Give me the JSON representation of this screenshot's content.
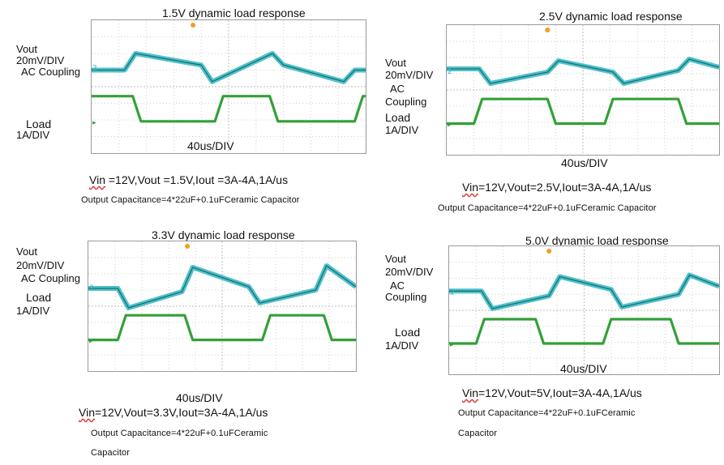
{
  "colors": {
    "vout": "#2fb7bf",
    "vout_dark": "#1b6e78",
    "load": "#33a038",
    "grid": "#d0d0d0",
    "marker_orange": "#f0a020"
  },
  "panels": [
    {
      "title": "1.5V dynamic load response",
      "vout_label": "Vout",
      "vout_scale": "20mV/DIV",
      "coupling": "AC Coupling",
      "load_label": "Load",
      "load_scale": "1A/DIV",
      "time_div": "40us/DIV",
      "condition_vin": "Vin",
      "condition_rest": " =12V,Vout =1.5V,Iout =3A-4A,1A/us",
      "capacitance": "Output Capacitance=4*22uF+0.1uFCeramic Capacitor"
    },
    {
      "title": "2.5V dynamic load response",
      "vout_label": "Vout",
      "vout_scale": "20mV/DIV",
      "coupling_line1": "AC",
      "coupling_line2": "Coupling",
      "load_label": "Load",
      "load_scale": "1A/DIV",
      "time_div": "40us/DIV",
      "condition_vin": "Vin",
      "condition_rest": "=12V,Vout=2.5V,Iout=3A-4A,1A/us",
      "capacitance": "Output Capacitance=4*22uF+0.1uFCeramic Capacitor"
    },
    {
      "title": "3.3V dynamic load response",
      "vout_label": "Vout",
      "vout_scale": "20mV/DIV",
      "coupling": "AC Coupling",
      "load_label": "Load",
      "load_scale": "1A/DIV",
      "time_div": "40us/DIV",
      "condition_vin": "Vin",
      "condition_rest": "=12V,Vout=3.3V,Iout=3A-4A,1A/us",
      "capacitance_line1": "Output Capacitance=4*22uF+0.1uFCeramic",
      "capacitance_line2": "Capacitor"
    },
    {
      "title": "5.0V dynamic load response",
      "vout_label": "Vout",
      "vout_scale": "20mV/DIV",
      "coupling_line1": "AC",
      "coupling_line2": "Coupling",
      "load_label": "Load",
      "load_scale": "1A/DIV",
      "time_div": "40us/DIV",
      "condition_vin": "Vin",
      "condition_rest": "=12V,Vout=5V,Iout=3A-4A,1A/us",
      "capacitance_line1": "Output Capacitance=4*22uF+0.1uFCeramic",
      "capacitance_line2": "Capacitor"
    }
  ],
  "chart_data": [
    {
      "type": "line",
      "title": "1.5V dynamic load response",
      "x_div": 10,
      "y_div": 8,
      "series": [
        {
          "name": "Vout",
          "x": [
            0,
            1.2,
            1.6,
            4.0,
            4.4,
            6.6,
            7.0,
            9.2,
            9.6,
            10
          ],
          "y": [
            -0.2,
            -0.2,
            0.8,
            0.1,
            -0.9,
            0.8,
            0.1,
            -0.9,
            -0.2,
            -0.2
          ]
        },
        {
          "name": "Load",
          "x": [
            0,
            1.5,
            1.8,
            4.5,
            4.8,
            6.5,
            6.8,
            9.6,
            9.9,
            10
          ],
          "y": [
            4,
            4,
            3,
            3,
            4,
            4,
            3,
            3,
            4,
            4
          ]
        }
      ]
    },
    {
      "type": "line",
      "title": "2.5V dynamic load response",
      "x_div": 10,
      "y_div": 8,
      "series": [
        {
          "name": "Vout",
          "x": [
            0,
            1.2,
            1.6,
            3.7,
            4.1,
            6.1,
            6.5,
            8.5,
            8.9,
            10
          ],
          "y": [
            0.1,
            0.1,
            -0.8,
            -0.1,
            0.6,
            -0.1,
            -0.8,
            0.0,
            0.7,
            0.2
          ]
        },
        {
          "name": "Load",
          "x": [
            0,
            1.0,
            1.3,
            3.7,
            4.0,
            5.8,
            6.1,
            8.5,
            8.8,
            10
          ],
          "y": [
            3,
            3,
            4,
            4,
            3,
            3,
            4,
            4,
            3,
            3
          ]
        }
      ]
    },
    {
      "type": "line",
      "title": "3.3V dynamic load response",
      "x_div": 10,
      "y_div": 8,
      "series": [
        {
          "name": "Vout",
          "x": [
            0,
            1.1,
            1.5,
            3.5,
            3.9,
            6.0,
            6.4,
            8.5,
            8.9,
            10
          ],
          "y": [
            -0.1,
            -0.1,
            -1.3,
            -0.3,
            1.2,
            0.0,
            -1.0,
            -0.2,
            1.3,
            0.0
          ]
        },
        {
          "name": "Load",
          "x": [
            0,
            1.1,
            1.4,
            3.6,
            3.9,
            6.5,
            6.8,
            8.8,
            9.1,
            10
          ],
          "y": [
            3,
            3,
            4,
            4,
            3,
            3,
            4,
            4,
            3,
            3
          ]
        }
      ]
    },
    {
      "type": "line",
      "title": "5.0V dynamic load response",
      "x_div": 10,
      "y_div": 8,
      "series": [
        {
          "name": "Vout",
          "x": [
            0,
            1.2,
            1.6,
            3.7,
            4.1,
            6.0,
            6.4,
            8.5,
            8.9,
            10
          ],
          "y": [
            0.0,
            0.0,
            -1.1,
            -0.3,
            0.9,
            0.1,
            -1.0,
            -0.2,
            1.0,
            0.3
          ]
        },
        {
          "name": "Load",
          "x": [
            0,
            1.0,
            1.3,
            3.2,
            3.5,
            5.7,
            6.0,
            8.2,
            8.5,
            10
          ],
          "y": [
            3,
            3,
            4,
            4,
            3,
            3,
            4,
            4,
            3,
            3
          ]
        }
      ]
    }
  ]
}
